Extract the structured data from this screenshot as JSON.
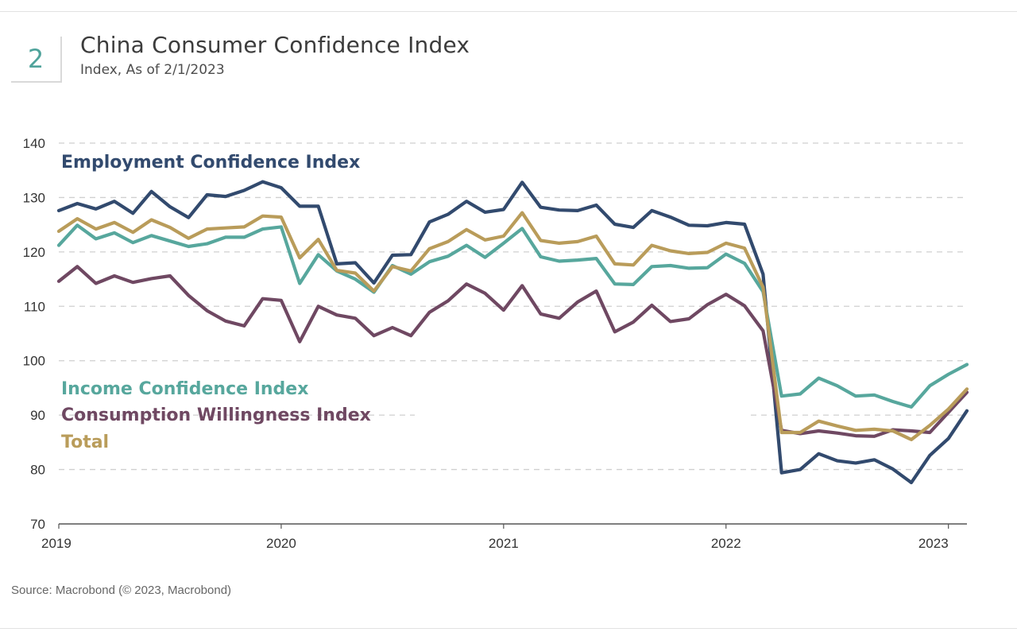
{
  "header": {
    "badge": "2",
    "title": "China Consumer Confidence Index",
    "subtitle": "Index, As of 2/1/2023"
  },
  "source": "Source: Macrobond (© 2023, Macrobond)",
  "chart_data": {
    "type": "line",
    "title": "China Consumer Confidence Index",
    "subtitle": "Index, As of 2/1/2023",
    "xlabel": "",
    "ylabel": "",
    "ylim": [
      70,
      140
    ],
    "yticks": [
      70,
      80,
      90,
      100,
      110,
      120,
      130,
      140
    ],
    "x_start": "2019-01",
    "xlim_months": [
      0,
      49
    ],
    "xticks": [
      {
        "label": "2019",
        "month_index": 0
      },
      {
        "label": "2020",
        "month_index": 12
      },
      {
        "label": "2021",
        "month_index": 24
      },
      {
        "label": "2022",
        "month_index": 36
      },
      {
        "label": "2023",
        "month_index": 48
      }
    ],
    "grid": true,
    "series": [
      {
        "name": "Employment Confidence Index",
        "color": "#324a6e",
        "values": [
          127.6,
          128.9,
          127.9,
          129.3,
          127.1,
          131.1,
          128.3,
          126.3,
          130.5,
          130.2,
          131.3,
          132.9,
          131.8,
          128.4,
          128.4,
          117.8,
          118,
          114.3,
          119.4,
          119.5,
          125.5,
          126.9,
          129.3,
          127.3,
          127.8,
          132.8,
          128.2,
          127.7,
          127.6,
          128.6,
          125.1,
          124.5,
          127.6,
          126.4,
          124.9,
          124.8,
          125.4,
          125.1,
          115.9,
          79.4,
          80,
          82.9,
          81.6,
          81.2,
          81.8,
          80.1,
          77.6,
          82.6,
          85.7,
          90.8
        ]
      },
      {
        "name": "Income Confidence Index",
        "color": "#57a79d",
        "values": [
          121.2,
          124.9,
          122.4,
          123.5,
          121.7,
          123,
          122,
          121,
          121.5,
          122.7,
          122.7,
          124.2,
          124.6,
          114.2,
          119.5,
          116.5,
          115,
          112.6,
          117.5,
          115.9,
          118.2,
          119.2,
          121.2,
          119,
          121.6,
          124.3,
          119.1,
          118.3,
          118.5,
          118.8,
          114.1,
          114,
          117.3,
          117.5,
          117,
          117.1,
          119.6,
          117.9,
          112.7,
          93.5,
          93.9,
          96.8,
          95.4,
          93.5,
          93.7,
          92.5,
          91.5,
          95.4,
          97.5,
          99.3
        ]
      },
      {
        "name": "Consumption Willingness Index",
        "color": "#6f4862",
        "values": [
          114.6,
          117.3,
          114.2,
          115.6,
          114.4,
          115.1,
          115.6,
          112,
          109.2,
          107.3,
          106.4,
          111.4,
          111.1,
          103.5,
          110,
          108.4,
          107.8,
          104.6,
          106.1,
          104.6,
          108.9,
          111,
          114.1,
          112.4,
          109.3,
          113.8,
          108.6,
          107.8,
          110.8,
          112.8,
          105.3,
          107.1,
          110.2,
          107.2,
          107.7,
          110.3,
          112.2,
          110.1,
          105.5,
          87.2,
          86.6,
          87.1,
          86.7,
          86.2,
          86.1,
          87.3,
          87.1,
          86.8,
          90.5,
          94.2
        ]
      },
      {
        "name": "Total",
        "color": "#b99c5a",
        "values": [
          123.8,
          126.1,
          124.2,
          125.4,
          123.6,
          125.9,
          124.5,
          122.5,
          124.2,
          124.4,
          124.6,
          126.6,
          126.4,
          118.9,
          122.3,
          116.6,
          116.1,
          112.8,
          117.3,
          116.5,
          120.6,
          121.9,
          124.1,
          122.2,
          122.9,
          127.2,
          122.1,
          121.6,
          121.9,
          122.9,
          117.8,
          117.6,
          121.2,
          120.2,
          119.7,
          119.9,
          121.6,
          120.7,
          113.5,
          86.8,
          86.8,
          88.9,
          88,
          87.2,
          87.4,
          87.1,
          85.5,
          88.1,
          91.1,
          94.8
        ]
      }
    ],
    "annotations": [
      {
        "text": "Employment Confidence Index",
        "color": "#324a6e"
      },
      {
        "text": "Income Confidence Index",
        "color": "#57a79d"
      },
      {
        "text": "Consumption Willingness Index",
        "color": "#6f4862"
      },
      {
        "text": "Total",
        "color": "#b99c5a"
      }
    ]
  }
}
